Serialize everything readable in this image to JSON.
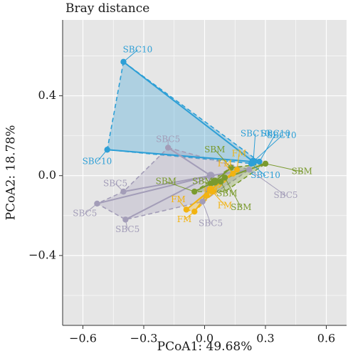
{
  "chart_data": {
    "type": "scatter",
    "title": "Bray distance",
    "xlabel": "PCoA1: 49.68%",
    "ylabel": "PCoA2: 18.78%",
    "xlim": [
      -0.7,
      0.7
    ],
    "ylim": [
      -0.75,
      0.78
    ],
    "xticks": [
      -0.6,
      -0.3,
      0.0,
      0.3,
      0.6
    ],
    "xtick_labels": [
      "−0.6",
      "−0.3",
      "0.0",
      "0.3",
      "0.6"
    ],
    "yticks": [
      0.4,
      0.0,
      -0.4
    ],
    "ytick_labels": [
      "0.4",
      "0.0",
      "−0.4"
    ],
    "grid": true,
    "legend": "none",
    "colors": {
      "SBC10": "#2d9fd6",
      "SBC5": "#a39db8",
      "SBM": "#7a9a2e",
      "FM": "#f2b311",
      "panel_bg": "#e6e6e6",
      "grid": "#ffffff"
    },
    "groups": [
      {
        "name": "SBC10",
        "centroid": [
          0.24,
          0.07
        ],
        "points": [
          {
            "x": -0.4,
            "y": 0.57,
            "label": "SBC10",
            "lx": -0.33,
            "ly": 0.63
          },
          {
            "x": -0.48,
            "y": 0.13,
            "label": "SBC10",
            "lx": -0.53,
            "ly": 0.07
          },
          {
            "x": 0.24,
            "y": 0.07,
            "label": "SBC10",
            "lx": 0.25,
            "ly": 0.21
          },
          {
            "x": 0.24,
            "y": 0.07,
            "label": "SBC10",
            "lx": 0.38,
            "ly": 0.2
          },
          {
            "x": 0.27,
            "y": 0.07,
            "label": "SBC10",
            "lx": 0.35,
            "ly": 0.21
          },
          {
            "x": 0.23,
            "y": 0.06,
            "label": "SBC10",
            "lx": 0.3,
            "ly": 0.0
          }
        ],
        "hull": [
          [
            -0.4,
            0.57
          ],
          [
            -0.48,
            0.13
          ],
          [
            0.24,
            0.06
          ],
          [
            0.27,
            0.07
          ]
        ]
      },
      {
        "name": "SBC5",
        "centroid": [
          0.03,
          0.0
        ],
        "points": [
          {
            "x": -0.18,
            "y": 0.14,
            "label": "SBC5",
            "lx": -0.18,
            "ly": 0.18
          },
          {
            "x": -0.4,
            "y": -0.08,
            "label": "SBC5",
            "lx": -0.44,
            "ly": -0.04
          },
          {
            "x": -0.53,
            "y": -0.14,
            "label": "SBC5",
            "lx": -0.59,
            "ly": -0.19
          },
          {
            "x": -0.39,
            "y": -0.22,
            "label": "SBC5",
            "lx": -0.38,
            "ly": -0.27
          },
          {
            "x": -0.01,
            "y": -0.13,
            "label": "SBC5",
            "lx": 0.03,
            "ly": -0.24
          },
          {
            "x": 0.22,
            "y": 0.03,
            "label": "SBC5",
            "lx": 0.4,
            "ly": -0.1
          }
        ],
        "hull": [
          [
            -0.18,
            0.14
          ],
          [
            0.22,
            0.03
          ],
          [
            -0.01,
            -0.13
          ],
          [
            -0.39,
            -0.22
          ],
          [
            -0.53,
            -0.14
          ],
          [
            -0.4,
            -0.08
          ]
        ]
      },
      {
        "name": "SBM",
        "centroid": [
          0.05,
          -0.03
        ],
        "points": [
          {
            "x": 0.3,
            "y": 0.06,
            "label": "SBM",
            "lx": 0.48,
            "ly": 0.02
          },
          {
            "x": 0.13,
            "y": 0.04,
            "label": "SBM",
            "lx": 0.05,
            "ly": 0.13
          },
          {
            "x": -0.05,
            "y": -0.08,
            "label": "SBM",
            "lx": -0.19,
            "ly": -0.03
          },
          {
            "x": 0.03,
            "y": -0.04,
            "label": "SBM",
            "lx": -0.01,
            "ly": -0.03
          },
          {
            "x": 0.08,
            "y": -0.03,
            "label": "SBM",
            "lx": 0.11,
            "ly": -0.09
          },
          {
            "x": 0.1,
            "y": -0.01,
            "label": "SBM",
            "lx": 0.18,
            "ly": -0.16
          }
        ],
        "hull": [
          [
            0.13,
            0.04
          ],
          [
            0.3,
            0.06
          ],
          [
            0.1,
            -0.08
          ],
          [
            -0.05,
            -0.08
          ]
        ]
      },
      {
        "name": "FM",
        "centroid": [
          0.03,
          -0.07
        ],
        "points": [
          {
            "x": 0.16,
            "y": 0.03,
            "label": "FM",
            "lx": 0.17,
            "ly": 0.11
          },
          {
            "x": 0.14,
            "y": 0.01,
            "label": "FM",
            "lx": 0.1,
            "ly": 0.06
          },
          {
            "x": -0.09,
            "y": -0.17,
            "label": "FM",
            "lx": -0.13,
            "ly": -0.12
          },
          {
            "x": -0.05,
            "y": -0.18,
            "label": "FM",
            "lx": -0.1,
            "ly": -0.22
          },
          {
            "x": 0.01,
            "y": -0.1,
            "label": "FM",
            "lx": 0.03,
            "ly": -0.08
          },
          {
            "x": 0.04,
            "y": -0.08,
            "label": "FM",
            "lx": 0.1,
            "ly": -0.15
          }
        ],
        "hull": [
          [
            0.16,
            0.03
          ],
          [
            0.14,
            0.01
          ],
          [
            -0.05,
            -0.18
          ],
          [
            -0.09,
            -0.17
          ]
        ]
      }
    ]
  }
}
